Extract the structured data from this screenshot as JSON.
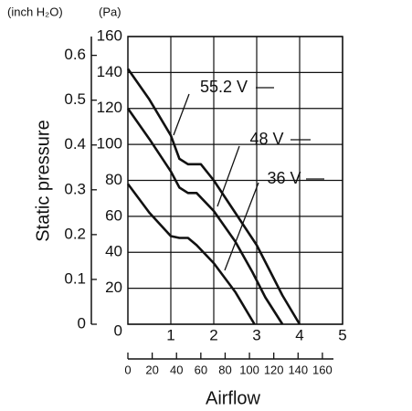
{
  "chart_data": {
    "type": "line",
    "unit_left": "(inch H₂O)",
    "unit_right": "(Pa)",
    "ylabel": "Static pressure",
    "xlabel": "Airflow",
    "xlim": [
      0,
      5
    ],
    "xticks": [
      1,
      2,
      3,
      4,
      5
    ],
    "ylim": [
      0,
      160
    ],
    "yticks": [
      0,
      20,
      40,
      60,
      80,
      100,
      120,
      140,
      160
    ],
    "y2lim": [
      0,
      0.642
    ],
    "y2ticks": [
      0,
      0.1,
      0.2,
      0.3,
      0.4,
      0.5,
      0.6
    ],
    "x2lim": [
      0,
      176.6
    ],
    "x2ticks": [
      0,
      20,
      40,
      60,
      80,
      100,
      120,
      140,
      160
    ],
    "grid": true,
    "series": [
      {
        "name": "55.2 V",
        "color": "#111111",
        "x": [
          0,
          0.5,
          1,
          1.2,
          1.4,
          1.7,
          2,
          2.5,
          3,
          3.3,
          3.6,
          4
        ],
        "values": [
          142,
          125,
          105,
          92,
          89,
          89,
          80,
          62,
          44,
          30,
          16,
          0
        ]
      },
      {
        "name": "48 V",
        "color": "#111111",
        "x": [
          0,
          0.5,
          1,
          1.2,
          1.4,
          1.6,
          2,
          2.5,
          2.9,
          3.2,
          3.6
        ],
        "values": [
          120,
          103,
          85,
          76,
          73,
          73,
          63,
          46,
          29,
          15,
          0
        ]
      },
      {
        "name": "36 V",
        "color": "#111111",
        "x": [
          0,
          0.5,
          1,
          1.2,
          1.4,
          1.6,
          2,
          2.5,
          2.95
        ],
        "values": [
          78,
          62,
          49,
          48,
          48,
          44,
          34,
          18,
          0
        ]
      }
    ]
  }
}
